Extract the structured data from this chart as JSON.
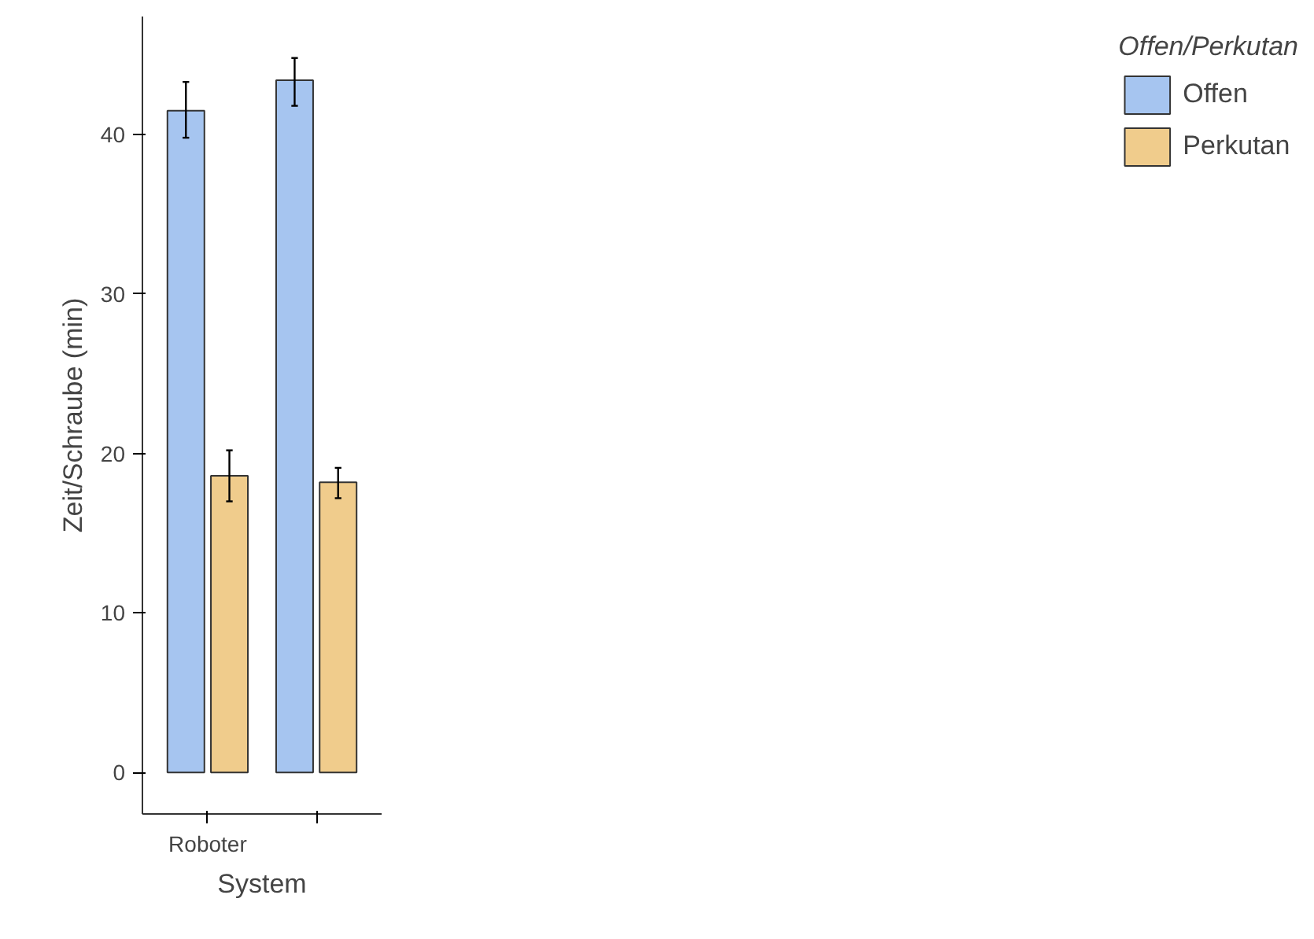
{
  "chart_data": {
    "type": "bar",
    "xlabel": "System",
    "ylabel": "Zeit/Schraube (min)",
    "legend_title": "Offen/Perkutan",
    "categories": [
      "Roboter",
      null
    ],
    "series": [
      {
        "name": "Offen",
        "color": "#a6c5f0",
        "values": [
          41.5,
          43.4
        ],
        "errors": [
          [
            39.8,
            43.3
          ],
          [
            41.8,
            44.8
          ]
        ]
      },
      {
        "name": "Perkutan",
        "color": "#f0cc8c",
        "values": [
          18.6,
          18.2
        ],
        "errors": [
          [
            17.0,
            20.2
          ],
          [
            17.2,
            19.1
          ]
        ]
      }
    ],
    "ylim": [
      -2.6,
      47.4
    ],
    "yticks": [
      0,
      10,
      20,
      30,
      40
    ],
    "grid": false,
    "legend": "right"
  }
}
